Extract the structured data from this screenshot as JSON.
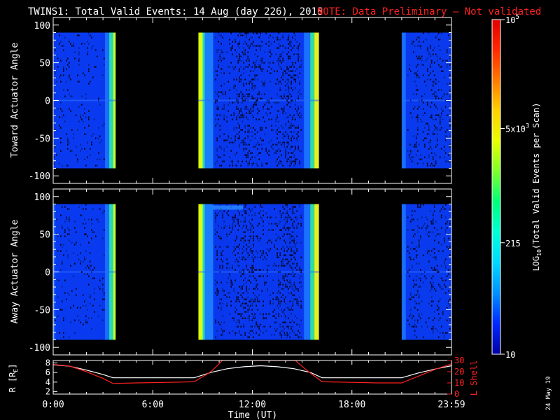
{
  "header": {
    "title": "TWINS1: Total Valid Events: 14 Aug (day 226), 2018",
    "note": "NOTE: Data Preliminary — Not validated"
  },
  "footer": {
    "date_stamp": "24 May 19"
  },
  "chart_data": [
    {
      "type": "heatmap",
      "panel": "toward",
      "ylabel": "Toward Actuator Angle",
      "ylim": [
        -110,
        110
      ],
      "yticks": [
        "100",
        "50",
        "0",
        "-50",
        "-100"
      ],
      "xlim_hours": [
        0,
        24
      ],
      "data_extent_deg": [
        -90,
        90
      ],
      "data_intervals_ut": [
        [
          "0:00",
          "3:45"
        ],
        [
          "8:45",
          "16:00"
        ],
        [
          "21:00",
          "23:59"
        ]
      ]
    },
    {
      "type": "heatmap",
      "panel": "away",
      "ylabel": "Away Actuator Angle",
      "ylim": [
        -110,
        110
      ],
      "yticks": [
        "100",
        "50",
        "0",
        "-50",
        "-100"
      ],
      "xlim_hours": [
        0,
        24
      ],
      "data_extent_deg": [
        -90,
        90
      ],
      "data_intervals_ut": [
        [
          "0:00",
          "3:45"
        ],
        [
          "8:45",
          "16:00"
        ],
        [
          "21:00",
          "23:59"
        ]
      ]
    },
    {
      "type": "line",
      "panel": "orbit",
      "ylabel_left": "R [R",
      "ylabel_left_sub": "E",
      "ylabel_left_end": "]",
      "ylabel_right": "L Shell",
      "ylim_left": [
        1.5,
        8.5
      ],
      "ylim_right": [
        0,
        30
      ],
      "yticks_left": [
        "8",
        "6",
        "4",
        "2"
      ],
      "yticks_right": [
        "30",
        "20",
        "10",
        "0"
      ],
      "xlabel": "Time (UT)",
      "xtick_labels": [
        "0:00",
        "6:00",
        "12:00",
        "18:00",
        "23:59"
      ],
      "xtick_hours": [
        0,
        6,
        12,
        18,
        24
      ],
      "series": [
        {
          "axis": "left",
          "color": "#ffffff",
          "x_hours": [
            0,
            1,
            2,
            3,
            3.6,
            5,
            7,
            8.5,
            9.5,
            10.5,
            11.5,
            12.5,
            13.5,
            14.5,
            15.5,
            16.2,
            18,
            19.5,
            21,
            22,
            23,
            24
          ],
          "values": [
            7.6,
            7.3,
            6.5,
            5.6,
            4.9,
            4.9,
            4.9,
            4.9,
            6.0,
            6.8,
            7.2,
            7.4,
            7.2,
            6.8,
            6.0,
            4.9,
            4.9,
            4.9,
            4.9,
            5.9,
            6.7,
            7.4
          ]
        },
        {
          "axis": "right",
          "color": "#ff2020",
          "x_hours": [
            0,
            1,
            2,
            3,
            3.6,
            5,
            7,
            8.5,
            9.5,
            10.2,
            14.6,
            15.3,
            16.2,
            18,
            19.5,
            21,
            22,
            23,
            24
          ],
          "values": [
            26.5,
            25,
            20,
            14,
            9.5,
            10,
            10.5,
            11,
            20,
            30,
            30,
            21,
            11,
            10.5,
            10,
            10,
            16,
            22,
            27
          ]
        }
      ]
    }
  ],
  "colorbar": {
    "label_prefix": "LOG",
    "label_sub": "10",
    "label_suffix": "(Total Valid Events per Scan)",
    "tick_labels": [
      {
        "base": "10",
        "exp": "5",
        "value": 100000
      },
      {
        "base": "5x10",
        "exp": "3",
        "value": 5000
      },
      {
        "base": "215",
        "exp": "",
        "value": 215
      },
      {
        "base": "10",
        "exp": "",
        "value": 10
      }
    ],
    "log_range": [
      1,
      5
    ],
    "colors": [
      "#0000a0",
      "#0028ff",
      "#0090ff",
      "#00d8ff",
      "#00ffd8",
      "#00ff7a",
      "#7cff2a",
      "#e8ff00",
      "#ffd200",
      "#ff7a00",
      "#ff2a00",
      "#e00000"
    ]
  }
}
